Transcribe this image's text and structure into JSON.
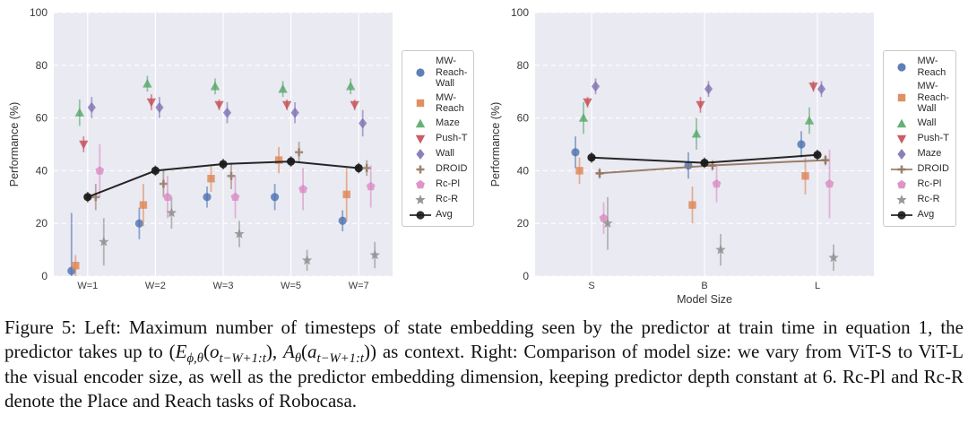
{
  "figure_label": "Figure 5",
  "chart_data": [
    {
      "type": "scatter",
      "position": "left",
      "title": "",
      "xlabel": "",
      "ylabel": "Performance (%)",
      "ylim": [
        0,
        100
      ],
      "yticks": [
        0,
        20,
        40,
        60,
        80,
        100
      ],
      "categories": [
        "W=1",
        "W=2",
        "W=3",
        "W=5",
        "W=7"
      ],
      "plot_bg": "#eaeaf2",
      "grid": true,
      "legend_position": "right",
      "series": [
        {
          "name": "MW-Reach-Wall",
          "legend_lines": [
            "MW-",
            "Reach-",
            "Wall"
          ],
          "marker": "circle",
          "color": "#4C72B0",
          "line": false,
          "dodge": -18,
          "values": [
            2,
            20,
            30,
            30,
            21
          ],
          "err": [
            22,
            6,
            4,
            5,
            4
          ]
        },
        {
          "name": "MW-Reach",
          "legend_lines": [
            "MW-",
            "Reach"
          ],
          "marker": "square",
          "color": "#DD8452",
          "line": false,
          "dodge": -13.5,
          "values": [
            4,
            27,
            37,
            44,
            31
          ],
          "err": [
            4,
            8,
            5,
            5,
            10
          ]
        },
        {
          "name": "Maze",
          "legend_lines": [
            "Maze"
          ],
          "marker": "triangle-up",
          "color": "#55A868",
          "line": false,
          "dodge": -9,
          "values": [
            62,
            73,
            72,
            71,
            72
          ],
          "err": [
            5,
            3,
            3,
            3,
            3
          ]
        },
        {
          "name": "Push-T",
          "legend_lines": [
            "Push-T"
          ],
          "marker": "triangle-down",
          "color": "#C44E52",
          "line": false,
          "dodge": -4.5,
          "values": [
            50,
            66,
            65,
            65,
            65
          ],
          "err": [
            3,
            3,
            2,
            2,
            2
          ]
        },
        {
          "name": "Wall",
          "legend_lines": [
            "Wall"
          ],
          "marker": "diamond",
          "color": "#8172B3",
          "line": false,
          "dodge": 4.5,
          "values": [
            64,
            64,
            62,
            62,
            58
          ],
          "err": [
            4,
            4,
            4,
            4,
            5
          ]
        },
        {
          "name": "DROID",
          "legend_lines": [
            "DROID"
          ],
          "marker": "plus",
          "color": "#937860",
          "line": false,
          "dodge": 9,
          "values": [
            30,
            35,
            38,
            47,
            41
          ],
          "err": [
            5,
            5,
            5,
            4,
            3
          ]
        },
        {
          "name": "Rc-Pl",
          "legend_lines": [
            "Rc-Pl"
          ],
          "marker": "pentagon",
          "color": "#DA8BC3",
          "line": false,
          "dodge": 13.5,
          "values": [
            40,
            30,
            30,
            33,
            34
          ],
          "err": [
            10,
            8,
            8,
            8,
            8
          ]
        },
        {
          "name": "Rc-R",
          "legend_lines": [
            "Rc-R"
          ],
          "marker": "star",
          "color": "#8C8C8C",
          "line": false,
          "dodge": 18,
          "values": [
            13,
            24,
            16,
            6,
            8
          ],
          "err": [
            9,
            6,
            5,
            4,
            5
          ]
        },
        {
          "name": "Avg",
          "legend_lines": [
            "Avg"
          ],
          "marker": "circle",
          "color": "#1a1a1a",
          "line": true,
          "dodge": 0,
          "values": [
            30,
            40,
            42.5,
            43.5,
            41
          ],
          "err": [
            2,
            2,
            2,
            2,
            2
          ]
        }
      ]
    },
    {
      "type": "scatter",
      "position": "right",
      "title": "",
      "xlabel": "Model Size",
      "ylabel": "Performance (%)",
      "ylim": [
        0,
        100
      ],
      "yticks": [
        0,
        20,
        40,
        60,
        80,
        100
      ],
      "categories": [
        "S",
        "B",
        "L"
      ],
      "plot_bg": "#eaeaf2",
      "grid": true,
      "legend_position": "right",
      "series": [
        {
          "name": "MW-Reach",
          "legend_lines": [
            "MW-",
            "Reach"
          ],
          "marker": "circle",
          "color": "#4C72B0",
          "line": false,
          "dodge": -18,
          "values": [
            47,
            42,
            50
          ],
          "err": [
            6,
            5,
            5
          ]
        },
        {
          "name": "MW-Reach-Wall",
          "legend_lines": [
            "MW-",
            "Reach-",
            "Wall"
          ],
          "marker": "square",
          "color": "#DD8452",
          "line": false,
          "dodge": -13.5,
          "values": [
            40,
            27,
            38
          ],
          "err": [
            5,
            7,
            7
          ]
        },
        {
          "name": "Wall",
          "legend_lines": [
            "Wall"
          ],
          "marker": "triangle-up",
          "color": "#55A868",
          "line": false,
          "dodge": -9,
          "values": [
            60,
            54,
            59
          ],
          "err": [
            6,
            6,
            5
          ]
        },
        {
          "name": "Push-T",
          "legend_lines": [
            "Push-T"
          ],
          "marker": "triangle-down",
          "color": "#C44E52",
          "line": false,
          "dodge": -4.5,
          "values": [
            66,
            65,
            72
          ],
          "err": [
            2,
            3,
            2
          ]
        },
        {
          "name": "Maze",
          "legend_lines": [
            "Maze"
          ],
          "marker": "diamond",
          "color": "#8172B3",
          "line": false,
          "dodge": 4.5,
          "values": [
            72,
            71,
            71
          ],
          "err": [
            3,
            3,
            3
          ]
        },
        {
          "name": "DROID",
          "legend_lines": [
            "DROID"
          ],
          "marker": "plus",
          "color": "#937860",
          "line": true,
          "dodge": 9,
          "values": [
            39,
            42,
            44
          ],
          "err": [
            2,
            2,
            2
          ]
        },
        {
          "name": "Rc-Pl",
          "legend_lines": [
            "Rc-Pl"
          ],
          "marker": "pentagon",
          "color": "#DA8BC3",
          "line": false,
          "dodge": 13.5,
          "values": [
            22,
            35,
            35
          ],
          "err": [
            6,
            7,
            13
          ]
        },
        {
          "name": "Rc-R",
          "legend_lines": [
            "Rc-R"
          ],
          "marker": "star",
          "color": "#8C8C8C",
          "line": false,
          "dodge": 18,
          "values": [
            20,
            10,
            7
          ],
          "err": [
            10,
            6,
            5
          ]
        },
        {
          "name": "Avg",
          "legend_lines": [
            "Avg"
          ],
          "marker": "circle",
          "color": "#1a1a1a",
          "line": true,
          "dodge": 0,
          "values": [
            45,
            43,
            46
          ],
          "err": [
            2,
            2,
            2
          ]
        }
      ]
    }
  ],
  "caption": {
    "runs": [
      {
        "style": "plain",
        "text": "Figure 5: Left: Maximum number of timesteps of state embedding seen by the predictor at train time in equation 1, the predictor takes up to ("
      },
      {
        "style": "math",
        "text": "E"
      },
      {
        "style": "sub",
        "text": "ϕ,θ"
      },
      {
        "style": "plain",
        "text": "("
      },
      {
        "style": "math",
        "text": "o"
      },
      {
        "style": "sub",
        "text": "t−W+1:t"
      },
      {
        "style": "plain",
        "text": "), "
      },
      {
        "style": "math",
        "text": "A"
      },
      {
        "style": "sub",
        "text": "θ"
      },
      {
        "style": "plain",
        "text": "("
      },
      {
        "style": "math",
        "text": "a"
      },
      {
        "style": "sub",
        "text": "t−W+1:t"
      },
      {
        "style": "plain",
        "text": ")) as context. Right: Comparison of model size: we vary from ViT-S to ViT-L the visual encoder size, as well as the predictor embedding dimension, keeping predictor depth constant at 6. Rc-Pl and Rc-R denote the Place and Reach tasks of Robocasa."
      }
    ]
  }
}
